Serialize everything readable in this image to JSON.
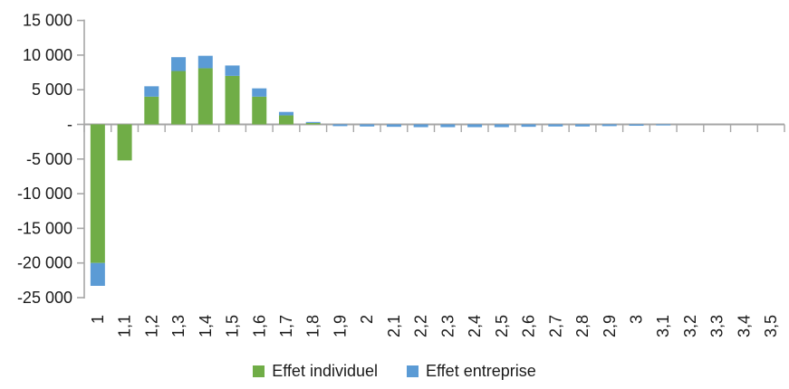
{
  "chart_data": {
    "type": "bar",
    "stacked": true,
    "title": "",
    "categories": [
      "1",
      "1,1",
      "1,2",
      "1,3",
      "1,4",
      "1,5",
      "1,6",
      "1,7",
      "1,8",
      "1,9",
      "2",
      "2,1",
      "2,2",
      "2,3",
      "2,4",
      "2,5",
      "2,6",
      "2,7",
      "2,8",
      "2,9",
      "3",
      "3,1",
      "3,2",
      "3,3",
      "3,4",
      "3,5"
    ],
    "series": [
      {
        "name": "Effet individuel",
        "color": "#70AD47",
        "values": [
          -20000,
          -5200,
          4000,
          7700,
          8100,
          7000,
          4000,
          1300,
          200,
          0,
          0,
          0,
          0,
          0,
          0,
          0,
          0,
          0,
          0,
          0,
          0,
          0,
          0,
          0,
          0,
          0
        ]
      },
      {
        "name": "Effet entreprise",
        "color": "#5B9BD5",
        "values": [
          -3300,
          0,
          1500,
          2000,
          1800,
          1500,
          1200,
          500,
          150,
          -250,
          -300,
          -350,
          -400,
          -400,
          -400,
          -400,
          -350,
          -300,
          -300,
          -250,
          -200,
          -150,
          0,
          0,
          0,
          0
        ]
      }
    ],
    "ylim": [
      -25000,
      15000
    ],
    "ytick_step": 5000,
    "ytick_labels": [
      "15 000",
      "10 000",
      "5 000",
      "-",
      "-5 000",
      "-10 000",
      "-15 000",
      "-20 000",
      "-25 000"
    ],
    "xtick_rotation": -90,
    "grid": false,
    "legend_position": "bottom",
    "axis_color": "#A6A6A6",
    "text_color": "#1A1A1A"
  }
}
